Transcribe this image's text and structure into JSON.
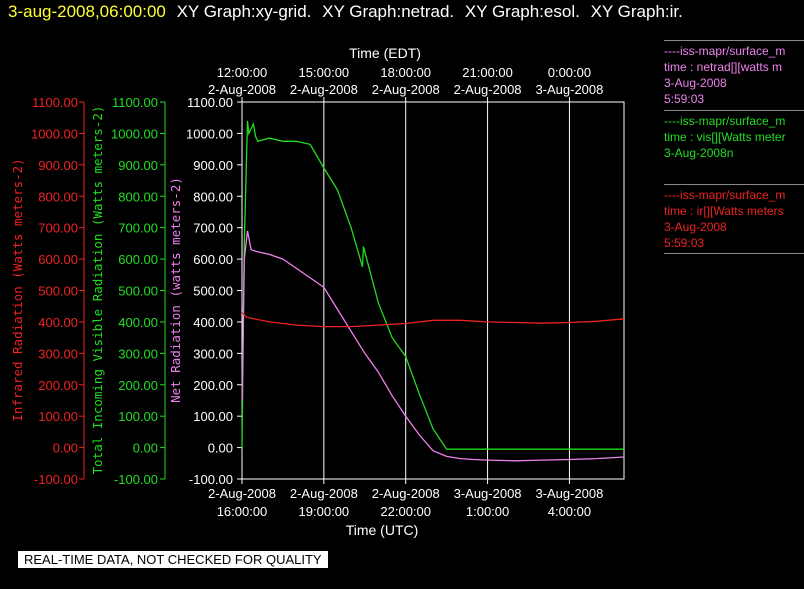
{
  "header": {
    "datetime": "3-aug-2008,06:00:00",
    "graphs": [
      "XY Graph:xy-grid.",
      "XY Graph:netrad.",
      "XY Graph:esol.",
      "XY Graph:ir."
    ]
  },
  "legend": [
    {
      "line1": "----iss-mapr/surface_m",
      "line2": "time : netrad[][watts m",
      "line3": "3-Aug-2008",
      "line4": "5:59:03",
      "color": "#ee82ee"
    },
    {
      "line1": "----iss-mapr/surface_m",
      "line2": "time : vis[][Watts meter",
      "line3": "3-Aug-2008n",
      "line4": "",
      "color": "#22dd22"
    },
    {
      "line1": "----iss-mapr/surface_m",
      "line2": "time : ir[][Watts meters",
      "line3": "3-Aug-2008",
      "line4": "5:59:03",
      "color": "#ee2222"
    }
  ],
  "footer": {
    "note": "REAL-TIME DATA, NOT CHECKED FOR QUALITY"
  },
  "colors": {
    "ir": "#ee2222",
    "vis": "#22dd22",
    "netrad": "#ee82ee",
    "axis": "#ffffff",
    "title_time": "#ffff33"
  },
  "chart_data": {
    "type": "line",
    "top_axis": {
      "title": "Time (EDT)",
      "ticks": [
        {
          "time": "12:00:00",
          "date": "2-Aug-2008"
        },
        {
          "time": "15:00:00",
          "date": "2-Aug-2008"
        },
        {
          "time": "18:00:00",
          "date": "2-Aug-2008"
        },
        {
          "time": "21:00:00",
          "date": "2-Aug-2008"
        },
        {
          "time": "0:00:00",
          "date": "3-Aug-2008"
        }
      ]
    },
    "bottom_axis": {
      "title": "Time (UTC)",
      "xlim": [
        "2-Aug-2008 16:00",
        "3-Aug-2008 06:00"
      ],
      "ticks": [
        {
          "date": "2-Aug-2008",
          "time": "16:00:00"
        },
        {
          "date": "2-Aug-2008",
          "time": "19:00:00"
        },
        {
          "date": "2-Aug-2008",
          "time": "22:00:00"
        },
        {
          "date": "3-Aug-2008",
          "time": "1:00:00"
        },
        {
          "date": "3-Aug-2008",
          "time": "4:00:00"
        }
      ]
    },
    "y_axes": [
      {
        "key": "ir",
        "label": "Infrared Radiation (Watts meters-2)",
        "ylim": [
          -100,
          1100
        ],
        "ticks": [
          "-100.00",
          "0.00",
          "100.00",
          "200.00",
          "300.00",
          "400.00",
          "500.00",
          "600.00",
          "700.00",
          "800.00",
          "900.00",
          "1000.00",
          "1100.00"
        ]
      },
      {
        "key": "vis",
        "label": "Total Incoming Visible Radiation (Watts meters-2)",
        "ylim": [
          -100,
          1100
        ],
        "ticks": [
          "-100.00",
          "0.00",
          "100.00",
          "200.00",
          "300.00",
          "400.00",
          "500.00",
          "600.00",
          "700.00",
          "800.00",
          "900.00",
          "1000.00",
          "1100.00"
        ]
      },
      {
        "key": "netrad",
        "label": "Net Radiation (watts meters-2)",
        "ylim": [
          -100,
          1100
        ],
        "ticks": [
          "-100.00",
          "0.00",
          "100.00",
          "200.00",
          "300.00",
          "400.00",
          "500.00",
          "600.00",
          "700.00",
          "800.00",
          "900.00",
          "1000.00",
          "1100.00"
        ]
      }
    ],
    "grid": true,
    "series": [
      {
        "key": "vis",
        "x": [
          "2-Aug-2008 16:00",
          "2-Aug-2008 16:05",
          "2-Aug-2008 16:12",
          "2-Aug-2008 16:15",
          "2-Aug-2008 16:25",
          "2-Aug-2008 16:30",
          "2-Aug-2008 16:35",
          "2-Aug-2008 17:00",
          "2-Aug-2008 17:30",
          "2-Aug-2008 18:00",
          "2-Aug-2008 18:30",
          "2-Aug-2008 19:00",
          "2-Aug-2008 19:30",
          "2-Aug-2008 20:00",
          "2-Aug-2008 20:25",
          "2-Aug-2008 20:27",
          "2-Aug-2008 21:00",
          "2-Aug-2008 21:30",
          "2-Aug-2008 22:00",
          "2-Aug-2008 22:30",
          "2-Aug-2008 23:00",
          "2-Aug-2008 23:30",
          "3-Aug-2008 00:00",
          "3-Aug-2008 00:30",
          "3-Aug-2008 01:00",
          "3-Aug-2008 02:00",
          "3-Aug-2008 03:00",
          "3-Aug-2008 04:00",
          "3-Aug-2008 05:00",
          "3-Aug-2008 06:00"
        ],
        "y": [
          0,
          650,
          1040,
          1000,
          1030,
          990,
          975,
          985,
          975,
          975,
          965,
          890,
          820,
          700,
          575,
          640,
          460,
          350,
          290,
          170,
          60,
          -5,
          -5,
          -5,
          -5,
          -5,
          -5,
          -5,
          -5,
          -5
        ]
      },
      {
        "key": "netrad",
        "x": [
          "2-Aug-2008 16:00",
          "2-Aug-2008 16:05",
          "2-Aug-2008 16:12",
          "2-Aug-2008 16:20",
          "2-Aug-2008 16:30",
          "2-Aug-2008 17:00",
          "2-Aug-2008 17:30",
          "2-Aug-2008 18:00",
          "2-Aug-2008 18:30",
          "2-Aug-2008 19:00",
          "2-Aug-2008 19:30",
          "2-Aug-2008 20:00",
          "2-Aug-2008 20:30",
          "2-Aug-2008 21:00",
          "2-Aug-2008 21:30",
          "2-Aug-2008 22:00",
          "2-Aug-2008 22:30",
          "2-Aug-2008 23:00",
          "2-Aug-2008 23:30",
          "3-Aug-2008 00:00",
          "3-Aug-2008 00:30",
          "3-Aug-2008 01:00",
          "3-Aug-2008 02:00",
          "3-Aug-2008 03:00",
          "3-Aug-2008 04:00",
          "3-Aug-2008 05:00",
          "3-Aug-2008 06:00"
        ],
        "y": [
          150,
          600,
          690,
          630,
          625,
          615,
          600,
          570,
          540,
          510,
          440,
          370,
          300,
          240,
          165,
          100,
          40,
          -10,
          -28,
          -35,
          -38,
          -40,
          -42,
          -40,
          -38,
          -35,
          -30
        ]
      },
      {
        "key": "ir",
        "x": [
          "2-Aug-2008 16:00",
          "2-Aug-2008 16:10",
          "2-Aug-2008 17:00",
          "2-Aug-2008 18:00",
          "2-Aug-2008 19:00",
          "2-Aug-2008 20:00",
          "2-Aug-2008 21:00",
          "2-Aug-2008 22:00",
          "2-Aug-2008 23:00",
          "3-Aug-2008 00:00",
          "3-Aug-2008 01:00",
          "3-Aug-2008 02:00",
          "3-Aug-2008 03:00",
          "3-Aug-2008 04:00",
          "3-Aug-2008 05:00",
          "3-Aug-2008 06:00"
        ],
        "y": [
          430,
          415,
          400,
          390,
          385,
          385,
          390,
          395,
          405,
          405,
          400,
          398,
          396,
          398,
          402,
          410
        ]
      }
    ]
  }
}
